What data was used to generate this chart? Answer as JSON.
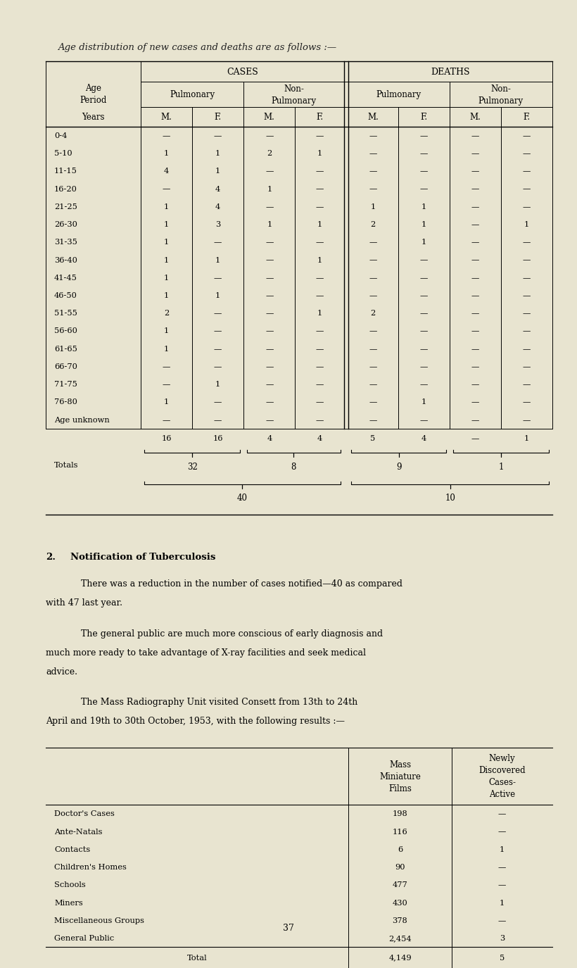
{
  "bg_color": "#e8e4d0",
  "title_text": "Age distribution of new cases and deaths are as follows :—",
  "table1": {
    "col_headers_top": [
      "CASES",
      "DEATHS"
    ],
    "col_headers_mid": [
      "Pulmonary",
      "Non-\nPulmonary",
      "Pulmonary",
      "Non-\nPulmonary"
    ],
    "col_headers_bot": [
      "M.",
      "F.",
      "M.",
      "F.",
      "M.",
      "F.",
      "M.",
      "F."
    ],
    "row_label_header": [
      "Age\nPeriod",
      "Years"
    ],
    "age_groups": [
      "0-4",
      "5-10",
      "11-15",
      "16-20",
      "21-25",
      "26-30",
      "31-35",
      "36-40",
      "41-45",
      "46-50",
      "51-55",
      "56-60",
      "61-65",
      "66-70",
      "71-75",
      "76-80",
      "Age unknown"
    ],
    "data": [
      [
        "—",
        "—",
        "—",
        "—",
        "—",
        "—",
        "—",
        "—"
      ],
      [
        "1",
        "1",
        "2",
        "1",
        "—",
        "—",
        "—",
        "—"
      ],
      [
        "4",
        "1",
        "—",
        "—",
        "—",
        "—",
        "—",
        "—"
      ],
      [
        "—",
        "4",
        "1",
        "—",
        "—",
        "—",
        "—",
        "—"
      ],
      [
        "1",
        "4",
        "—",
        "—",
        "1",
        "1",
        "—",
        "—"
      ],
      [
        "1",
        "3",
        "1",
        "1",
        "2",
        "1",
        "—",
        "1"
      ],
      [
        "1",
        "—",
        "—",
        "—",
        "—",
        "1",
        "—",
        "—"
      ],
      [
        "1",
        "1",
        "—",
        "1",
        "—",
        "—",
        "—",
        "—"
      ],
      [
        "1",
        "—",
        "—",
        "—",
        "—",
        "—",
        "—",
        "—"
      ],
      [
        "1",
        "1",
        "—",
        "—",
        "—",
        "—",
        "—",
        "—"
      ],
      [
        "2",
        "—",
        "—",
        "1",
        "2",
        "—",
        "—",
        "—"
      ],
      [
        "1",
        "—",
        "—",
        "—",
        "—",
        "—",
        "—",
        "—"
      ],
      [
        "1",
        "—",
        "—",
        "—",
        "—",
        "—",
        "—",
        "—"
      ],
      [
        "—",
        "—",
        "—",
        "—",
        "—",
        "—",
        "—",
        "—"
      ],
      [
        "—",
        "1",
        "—",
        "—",
        "—",
        "—",
        "—",
        "—"
      ],
      [
        "1",
        "—",
        "—",
        "—",
        "—",
        "1",
        "—",
        "—"
      ],
      [
        "—",
        "—",
        "—",
        "—",
        "—",
        "—",
        "—",
        "—"
      ]
    ],
    "totals_row": [
      "16",
      "16",
      "4",
      "4",
      "5",
      "4",
      "—",
      "1"
    ],
    "subtotals": [
      [
        "32",
        "8"
      ],
      [
        "9",
        "1"
      ]
    ],
    "grand_totals": [
      "40",
      "10"
    ]
  },
  "section2_title": "2. Notification of Tuberculosis",
  "para1": "There was a reduction in the number of cases notified—40 as compared\nwith 47 last year.",
  "para2": "The general public are much more conscious of early diagnosis and\nmuch more ready to take advantage of X-ray facilities and seek medical\nadvice.",
  "para3": "The Mass Radiography Unit visited Consett from 13th to 24th\nApril and 19th to 30th October, 1953, with the following results :—",
  "table2": {
    "col_headers": [
      "Mass\nMiniature\nFilms",
      "Newly\nDiscovered\nCases-\nActive"
    ],
    "rows": [
      [
        "Doctor's Cases",
        "198",
        "—"
      ],
      [
        "Ante-Natals",
        "116",
        "—"
      ],
      [
        "Contacts",
        "6",
        "1"
      ],
      [
        "Children's Homes",
        "90",
        "—"
      ],
      [
        "Schools",
        "477",
        "—"
      ],
      [
        "Miners",
        "430",
        "1"
      ],
      [
        "Miscellaneous Groups",
        "378",
        "—"
      ],
      [
        "General Public",
        "2,454",
        "3"
      ]
    ],
    "total_row": [
      "Total",
      "4,149",
      "5"
    ]
  },
  "page_number": "37"
}
